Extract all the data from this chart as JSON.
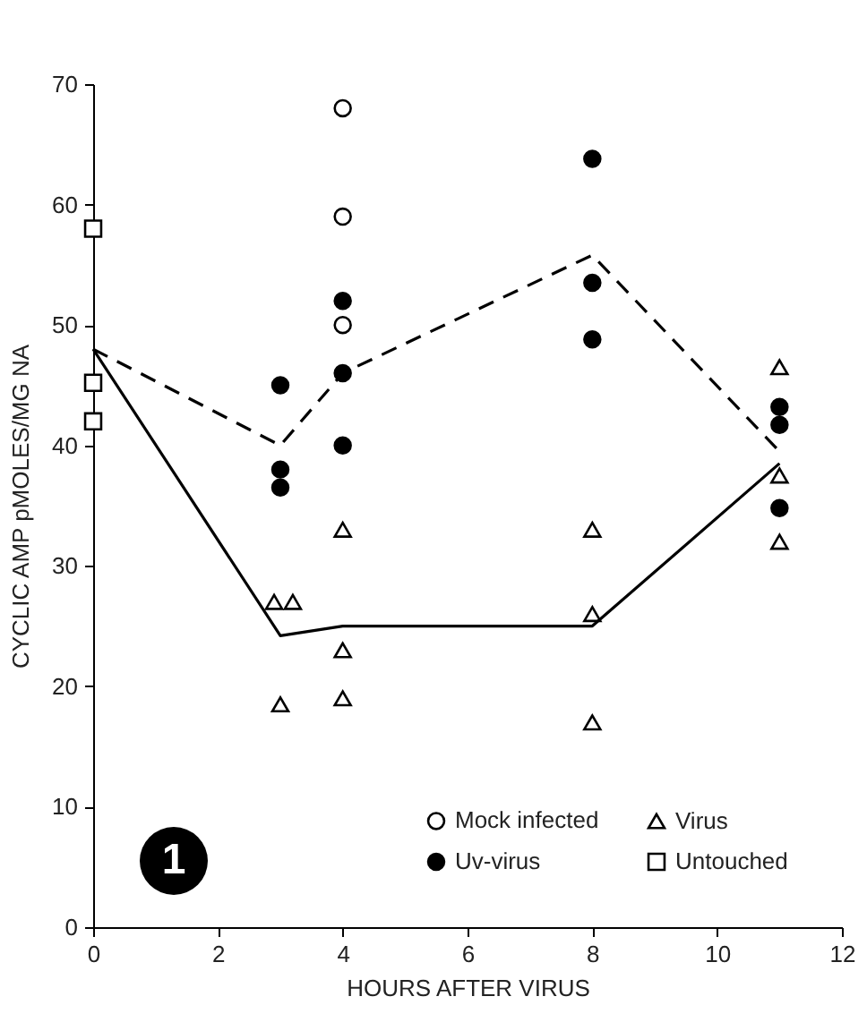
{
  "chart_data": {
    "type": "scatter",
    "xlabel": "HOURS AFTER VIRUS",
    "ylabel": "CYCLIC AMP pMOLES/MG NA",
    "xlim": [
      0,
      12
    ],
    "xticks": [
      0,
      2,
      4,
      6,
      8,
      10,
      12
    ],
    "ylim": [
      0,
      70
    ],
    "yticks": [
      0,
      10,
      20,
      30,
      40,
      50,
      60,
      70
    ],
    "grid": false,
    "legend": "bottom right",
    "annotations": [
      "1"
    ],
    "series": [
      {
        "name": "Mock infected",
        "color": "#ffffff",
        "marker": "circle",
        "x": [
          4,
          4,
          4
        ],
        "values": [
          68,
          59,
          50
        ]
      },
      {
        "name": "Virus",
        "color": "#ffffff",
        "marker": "triangle",
        "x": [
          2.9,
          3.2,
          3,
          4,
          4,
          4,
          8,
          8,
          8,
          11,
          11,
          11
        ],
        "values": [
          27,
          27,
          18.5,
          33,
          23,
          19,
          33,
          26,
          17,
          46.5,
          37.5,
          32
        ]
      },
      {
        "name": "Uv-virus",
        "color": "#000000",
        "marker": "circle",
        "x": [
          3,
          3,
          3,
          4,
          4,
          4,
          8,
          8,
          8,
          11,
          11,
          11
        ],
        "values": [
          45,
          38,
          36.5,
          52,
          46,
          40,
          63.8,
          53.5,
          48.8,
          43.2,
          41.7,
          34.8
        ]
      },
      {
        "name": "Untouched",
        "color": "#ffffff",
        "marker": "square",
        "x": [
          0,
          0,
          0
        ],
        "values": [
          58,
          45.2,
          42
        ]
      },
      {
        "type": "line",
        "color": "#000000",
        "line_style": "dashed",
        "marker": "none",
        "x": [
          0,
          3,
          4,
          8,
          11
        ],
        "values": [
          48,
          40,
          46,
          55.8,
          39.5
        ]
      },
      {
        "type": "line",
        "color": "#000000",
        "line_style": "solid",
        "marker": "none",
        "x": [
          0,
          3,
          4,
          8,
          11
        ],
        "values": [
          48,
          24.2,
          25,
          25,
          38.5
        ]
      }
    ]
  }
}
